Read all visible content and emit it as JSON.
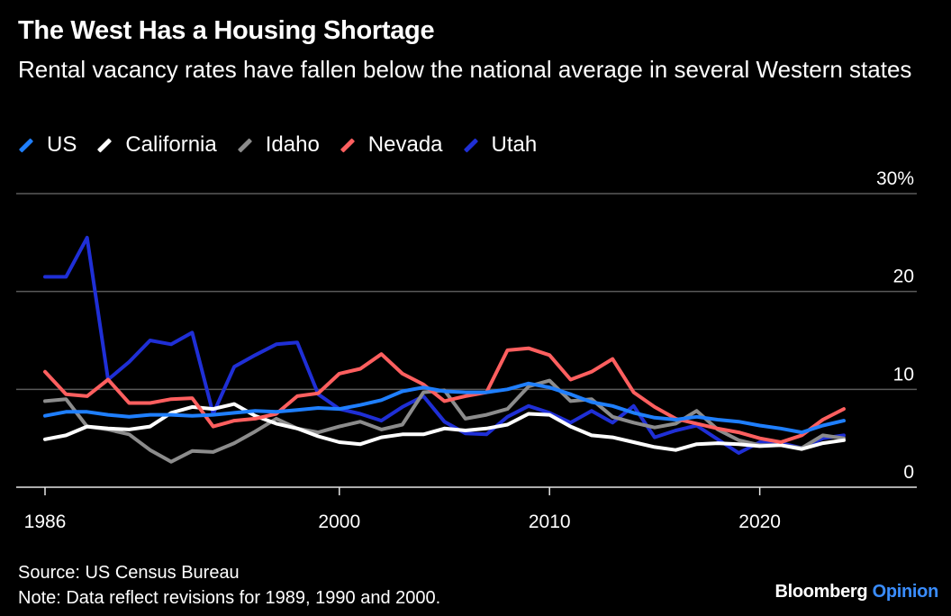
{
  "chart_data": {
    "type": "line",
    "title": "The West Has a Housing Shortage",
    "subtitle": "Rental vacancy rates have fallen below the national average in several Western states",
    "x": [
      1986,
      1987,
      1988,
      1989,
      1990,
      1991,
      1992,
      1993,
      1994,
      1995,
      1996,
      1997,
      1998,
      1999,
      2000,
      2001,
      2002,
      2003,
      2004,
      2005,
      2006,
      2007,
      2008,
      2009,
      2010,
      2011,
      2012,
      2013,
      2014,
      2015,
      2016,
      2017,
      2018,
      2019,
      2020,
      2021,
      2022,
      2023,
      2024
    ],
    "x_ticks": [
      {
        "value": 1986,
        "label": "1986"
      },
      {
        "value": 2000,
        "label": "2000"
      },
      {
        "value": 2010,
        "label": "2010"
      },
      {
        "value": 2020,
        "label": "2020"
      }
    ],
    "y_ticks": [
      {
        "value": 30,
        "label": "30%"
      },
      {
        "value": 20,
        "label": "20"
      },
      {
        "value": 10,
        "label": "10"
      },
      {
        "value": 0,
        "label": "0"
      }
    ],
    "xlim": [
      1986,
      2024
    ],
    "ylim": [
      0,
      30
    ],
    "grid": true,
    "legend_position": "top-left",
    "series": [
      {
        "name": "Utah",
        "color": "#1f2fd6",
        "values": [
          21.5,
          21.5,
          25.5,
          11,
          12.8,
          15,
          14.6,
          15.8,
          7.5,
          12.3,
          13.5,
          14.6,
          14.8,
          9.5,
          8,
          7.5,
          6.8,
          8.2,
          9.3,
          6.7,
          5.5,
          5.4,
          7.2,
          8.3,
          7.6,
          6.6,
          7.8,
          6.6,
          8.3,
          5.1,
          5.8,
          6.3,
          4.9,
          3.5,
          4.6,
          4.5,
          4,
          5,
          5.3
        ]
      },
      {
        "name": "Idaho",
        "color": "#8c8c8c",
        "values": [
          8.8,
          9,
          6.2,
          5.9,
          5.4,
          3.8,
          2.6,
          3.7,
          3.6,
          4.5,
          5.7,
          7,
          6,
          5.6,
          6.2,
          6.7,
          5.9,
          6.4,
          9.7,
          9.9,
          7,
          7.4,
          8,
          10.3,
          10.9,
          8.8,
          9,
          7.2,
          6.6,
          6.1,
          6.5,
          7.8,
          5.9,
          4.8,
          4.3,
          4.3,
          4,
          5.3,
          5
        ]
      },
      {
        "name": "California",
        "color": "#ffffff",
        "values": [
          4.9,
          5.3,
          6.2,
          6,
          5.9,
          6.2,
          7.6,
          8.2,
          8,
          8.5,
          7.3,
          6.5,
          6,
          5.2,
          4.6,
          4.4,
          5.1,
          5.4,
          5.4,
          6,
          5.8,
          6,
          6.4,
          7.5,
          7.4,
          6.2,
          5.3,
          5.1,
          4.6,
          4.1,
          3.8,
          4.4,
          4.5,
          4.4,
          4.2,
          4.3,
          3.9,
          4.5,
          4.8
        ]
      },
      {
        "name": "Nevada",
        "color": "#ff5f5f",
        "values": [
          11.8,
          9.5,
          9.3,
          11,
          8.6,
          8.6,
          9,
          9.1,
          6.2,
          6.8,
          7,
          7.5,
          9.3,
          9.6,
          11.6,
          12.1,
          13.6,
          11.6,
          10.5,
          8.8,
          9.3,
          9.7,
          14,
          14.2,
          13.5,
          11,
          11.8,
          13.1,
          9.7,
          8.2,
          7,
          6.5,
          6,
          5.6,
          5,
          4.6,
          5.3,
          6.9,
          8
        ]
      },
      {
        "name": "US",
        "color": "#1f7fff",
        "values": [
          7.3,
          7.7,
          7.7,
          7.4,
          7.2,
          7.4,
          7.4,
          7.3,
          7.4,
          7.6,
          7.8,
          7.7,
          7.9,
          8.1,
          8,
          8.4,
          8.9,
          9.8,
          10.2,
          9.8,
          9.7,
          9.7,
          10,
          10.6,
          10.2,
          9.5,
          8.7,
          8.3,
          7.6,
          7.1,
          6.9,
          7.2,
          6.9,
          6.7,
          6.3,
          6,
          5.6,
          6.3,
          6.8
        ]
      }
    ],
    "legend_order": [
      "US",
      "California",
      "Idaho",
      "Nevada",
      "Utah"
    ]
  },
  "legend": [
    {
      "label": "US",
      "color": "#1f7fff"
    },
    {
      "label": "California",
      "color": "#ffffff"
    },
    {
      "label": "Idaho",
      "color": "#8c8c8c"
    },
    {
      "label": "Nevada",
      "color": "#ff5f5f"
    },
    {
      "label": "Utah",
      "color": "#1f2fd6"
    }
  ],
  "footer": {
    "source": "Source: US Census Bureau",
    "note": "Note: Data reflect revisions for 1989, 1990 and 2000."
  },
  "brand": {
    "name": "Bloomberg",
    "accent": "Opinion",
    "accent_color": "#3a8dff"
  }
}
